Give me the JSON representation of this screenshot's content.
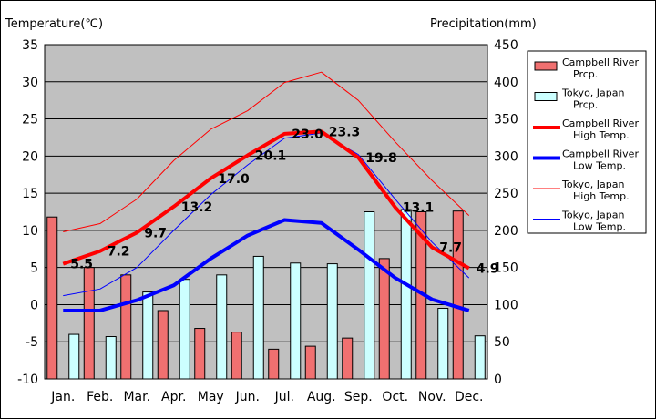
{
  "chart_data": {
    "type": "bar",
    "left_axis_title": "Temperature(℃)",
    "right_axis_title": "Precipitation(mm)",
    "categories": [
      "Jan.",
      "Feb.",
      "Mar.",
      "Apr.",
      "May",
      "Jun.",
      "Jul.",
      "Aug.",
      "Sep.",
      "Oct.",
      "Nov.",
      "Dec."
    ],
    "temp_ylim": [
      -10,
      35
    ],
    "temp_ticks": [
      35,
      30,
      25,
      20,
      15,
      10,
      5,
      0,
      -5,
      -10
    ],
    "precip_ylim": [
      0,
      450
    ],
    "precip_ticks": [
      450,
      400,
      350,
      300,
      250,
      200,
      150,
      100,
      50,
      0
    ],
    "grid": true,
    "legend_position": "right",
    "bar_series": [
      {
        "name": "Campbell River\nPrcp.",
        "color": "#f07070",
        "values": [
          218,
          150,
          140,
          92,
          68,
          63,
          40,
          44,
          55,
          162,
          225,
          226
        ]
      },
      {
        "name": "Tokyo, Japan\nPrcp.",
        "color": "#ccffff",
        "values": [
          60,
          57,
          117,
          134,
          140,
          165,
          156,
          155,
          225,
          228,
          95,
          58
        ]
      }
    ],
    "line_series": [
      {
        "name": "Campbell River\nHigh Temp.",
        "color": "#ff0000",
        "width": 4,
        "values": [
          5.5,
          7.2,
          9.7,
          13.2,
          17.0,
          20.1,
          23.0,
          23.3,
          19.8,
          13.1,
          7.7,
          4.9
        ],
        "labeled": true
      },
      {
        "name": "Campbell River\nLow Temp.",
        "color": "#0000ff",
        "width": 4,
        "values": [
          -0.8,
          -0.8,
          0.6,
          2.6,
          6.2,
          9.3,
          11.4,
          11.0,
          7.4,
          3.6,
          0.7,
          -0.8
        ],
        "labeled": false
      },
      {
        "name": "Tokyo, Japan\nHigh Temp.",
        "color": "#ff0000",
        "width": 1,
        "values": [
          9.8,
          10.9,
          14.2,
          19.4,
          23.6,
          26.1,
          29.9,
          31.3,
          27.5,
          21.9,
          16.7,
          12.0
        ],
        "labeled": false
      },
      {
        "name": "Tokyo, Japan\nLow Temp.",
        "color": "#0000ff",
        "width": 1,
        "values": [
          1.2,
          2.1,
          5.0,
          10.0,
          14.8,
          18.8,
          22.4,
          23.1,
          20.2,
          14.2,
          8.4,
          3.6
        ],
        "labeled": false
      }
    ],
    "data_labels": [
      "5.5",
      "7.2",
      "9.7",
      "13.2",
      "17.0",
      "20.1",
      "23.0",
      "23.3",
      "19.8",
      "13.1",
      "7.7",
      "4.9"
    ]
  }
}
